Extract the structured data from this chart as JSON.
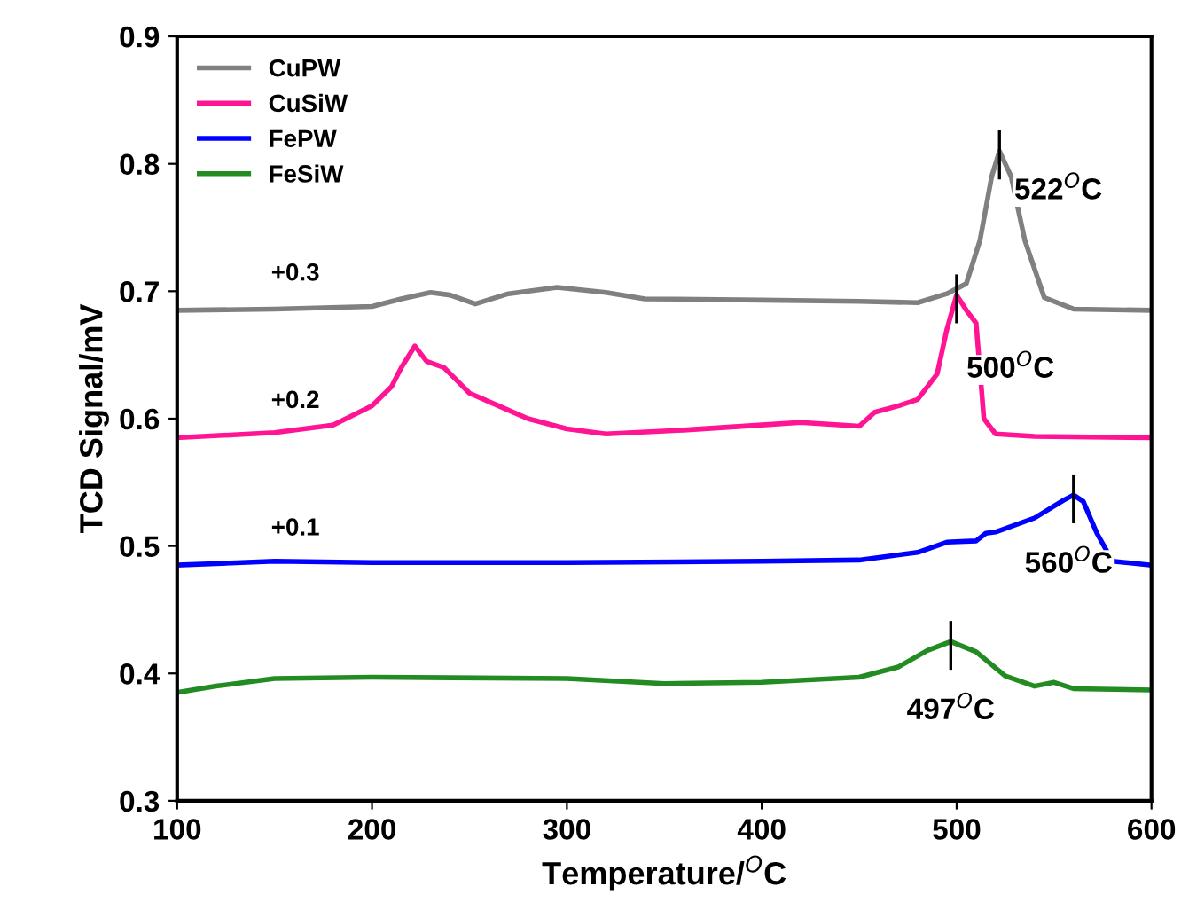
{
  "chart_data": {
    "type": "line",
    "xlabel": "Temperature/$^{O}$C",
    "ylabel": "TCD Signal/mV",
    "xlim": [
      100,
      600
    ],
    "ylim": [
      0.3,
      0.9
    ],
    "xticks": [
      100,
      200,
      300,
      400,
      500,
      600
    ],
    "yticks": [
      0.3,
      0.4,
      0.5,
      0.6,
      0.7,
      0.8,
      0.9
    ],
    "legend": "top left",
    "grid": false,
    "line_style": "solid",
    "series": [
      {
        "name": "CuPW",
        "color": "#808080",
        "x": [
          100,
          150,
          200,
          215,
          230,
          240,
          253,
          270,
          295,
          320,
          340,
          400,
          450,
          480,
          495,
          505,
          512,
          518,
          522,
          528,
          535,
          545,
          560,
          600
        ],
        "values": [
          0.685,
          0.686,
          0.688,
          0.694,
          0.699,
          0.697,
          0.69,
          0.698,
          0.703,
          0.699,
          0.694,
          0.693,
          0.692,
          0.691,
          0.698,
          0.706,
          0.74,
          0.79,
          0.81,
          0.79,
          0.74,
          0.695,
          0.686,
          0.685
        ]
      },
      {
        "name": "CuSiW",
        "color": "#ff1493",
        "x": [
          100,
          150,
          180,
          200,
          210,
          215,
          222,
          228,
          237,
          250,
          265,
          280,
          300,
          320,
          360,
          400,
          420,
          450,
          458,
          470,
          480,
          490,
          495,
          500,
          505,
          510,
          514,
          520,
          540,
          600
        ],
        "values": [
          0.585,
          0.589,
          0.595,
          0.61,
          0.625,
          0.64,
          0.657,
          0.645,
          0.64,
          0.62,
          0.61,
          0.6,
          0.592,
          0.588,
          0.591,
          0.595,
          0.597,
          0.594,
          0.605,
          0.61,
          0.615,
          0.635,
          0.67,
          0.697,
          0.685,
          0.675,
          0.6,
          0.588,
          0.586,
          0.585
        ]
      },
      {
        "name": "FePW",
        "color": "#0000ff",
        "x": [
          100,
          150,
          200,
          300,
          400,
          450,
          480,
          495,
          510,
          515,
          520,
          540,
          555,
          560,
          565,
          572,
          580,
          600
        ],
        "values": [
          0.485,
          0.488,
          0.487,
          0.487,
          0.488,
          0.489,
          0.495,
          0.503,
          0.504,
          0.51,
          0.511,
          0.522,
          0.536,
          0.54,
          0.535,
          0.51,
          0.488,
          0.485
        ]
      },
      {
        "name": "FeSiW",
        "color": "#228b22",
        "x": [
          100,
          120,
          150,
          200,
          300,
          350,
          400,
          450,
          470,
          485,
          497,
          510,
          525,
          540,
          550,
          560,
          600
        ],
        "values": [
          0.385,
          0.39,
          0.396,
          0.397,
          0.396,
          0.392,
          0.393,
          0.397,
          0.405,
          0.418,
          0.425,
          0.417,
          0.398,
          0.39,
          0.393,
          0.388,
          0.387
        ]
      }
    ],
    "annotations": [
      "+0.3",
      "+0.2",
      "+0.1",
      {
        "text": "522$^{O}$C",
        "x": 522,
        "y": 0.81
      },
      {
        "text": "500$^{O}$C",
        "x": 500,
        "y": 0.697
      },
      {
        "text": "560$^{O}$C",
        "x": 560,
        "y": 0.54
      },
      {
        "text": "497$^{O}$C",
        "x": 497,
        "y": 0.425
      }
    ]
  }
}
